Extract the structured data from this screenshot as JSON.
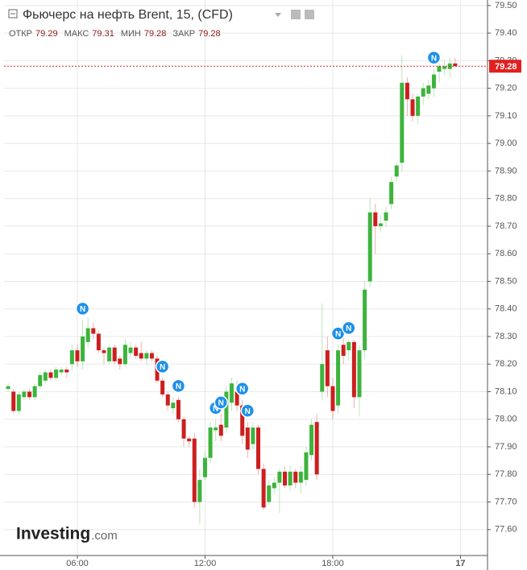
{
  "chart_data": {
    "type": "candlestick",
    "title": "Фьючерс на нефть Brent, 15, (CFD)",
    "ohlc": [
      {
        "label": "ОТКР",
        "value": 79.29
      },
      {
        "label": "МАКС",
        "value": 79.31
      },
      {
        "label": "МИН",
        "value": 79.28
      },
      {
        "label": "ЗАКР",
        "value": 79.28
      }
    ],
    "logo": {
      "name": "Investing",
      "suffix": ".com"
    },
    "up_color": "#3cb43c",
    "down_color": "#cc1f1f",
    "x": [
      2.75,
      3,
      3.25,
      3.5,
      3.75,
      4,
      4.25,
      4.5,
      4.75,
      5,
      5.25,
      5.5,
      5.75,
      6,
      6.25,
      6.5,
      6.75,
      7,
      7.25,
      7.5,
      7.75,
      8,
      8.25,
      8.5,
      8.75,
      9,
      9.25,
      9.5,
      9.75,
      10,
      10.25,
      10.5,
      10.75,
      11,
      11.25,
      11.5,
      11.75,
      12,
      12.25,
      12.5,
      12.75,
      13,
      13.25,
      13.5,
      13.75,
      14,
      14.25,
      14.5,
      14.75,
      15,
      15.25,
      15.5,
      15.75,
      16,
      16.25,
      16.5,
      16.75,
      17,
      17.25,
      17.5,
      17.75,
      18,
      18.25,
      18.5,
      18.75,
      19,
      19.25,
      19.5,
      19.75,
      20,
      20.25,
      20.5,
      20.75,
      21,
      21.25,
      21.5,
      21.75,
      22,
      22.25,
      22.5,
      22.75,
      23,
      23.25,
      23.5,
      23.75
    ],
    "open": [
      78.11,
      78.1,
      78.03,
      78.08,
      78.1,
      78.08,
      78.12,
      78.14,
      78.17,
      78.15,
      78.17,
      78.18,
      78.2,
      78.25,
      78.21,
      78.28,
      78.33,
      78.31,
      78.25,
      78.21,
      78.26,
      78.22,
      78.2,
      78.24,
      78.26,
      78.24,
      78.22,
      78.24,
      78.22,
      78.14,
      78.09,
      78.04,
      78.07,
      78.0,
      77.93,
      77.93,
      77.7,
      77.79,
      77.86,
      77.96,
      77.98,
      77.97,
      78.06,
      78.1,
      78.05,
      77.97,
      77.91,
      77.97,
      77.82,
      77.7,
      77.75,
      77.77,
      77.81,
      77.76,
      77.81,
      77.77,
      77.78,
      77.87,
      77.99,
      78.1,
      78.25,
      78.12,
      78.05,
      78.27,
      78.25,
      78.28,
      78.08,
      78.25,
      78.5,
      78.75,
      78.7,
      78.72,
      78.78,
      78.88,
      78.93,
      79.22,
      79.16,
      79.1,
      79.17,
      79.18,
      79.2,
      79.26,
      79.27,
      79.27,
      79.29
    ],
    "high": [
      78.13,
      78.11,
      78.1,
      78.11,
      78.11,
      78.13,
      78.17,
      78.18,
      78.18,
      78.19,
      78.19,
      78.19,
      78.27,
      78.27,
      78.36,
      78.37,
      78.35,
      78.32,
      78.26,
      78.27,
      78.27,
      78.23,
      78.29,
      78.28,
      78.27,
      78.28,
      78.25,
      78.25,
      78.23,
      78.15,
      78.1,
      78.08,
      78.08,
      78.01,
      77.94,
      77.95,
      77.82,
      77.88,
      77.99,
      78.0,
      78.02,
      78.12,
      78.15,
      78.14,
      78.07,
      77.99,
      77.99,
      77.98,
      77.84,
      77.78,
      77.79,
      77.82,
      77.83,
      77.83,
      77.82,
      77.83,
      77.9,
      78.0,
      78.02,
      78.42,
      78.3,
      78.15,
      78.27,
      78.3,
      78.29,
      78.29,
      78.27,
      78.5,
      78.8,
      78.78,
      78.74,
      78.77,
      78.88,
      78.93,
      79.32,
      79.24,
      79.18,
      79.18,
      79.22,
      79.23,
      79.27,
      79.29,
      79.3,
      79.31,
      79.31
    ],
    "low": [
      78.1,
      78.02,
      78.02,
      78.07,
      78.07,
      78.07,
      78.11,
      78.13,
      78.14,
      78.14,
      78.16,
      78.15,
      78.18,
      78.19,
      78.18,
      78.26,
      78.29,
      78.24,
      78.2,
      78.2,
      78.2,
      78.18,
      78.19,
      78.22,
      78.22,
      78.21,
      78.2,
      78.21,
      78.13,
      78.08,
      78.03,
      78.02,
      77.99,
      77.9,
      77.9,
      77.68,
      77.62,
      77.78,
      77.84,
      77.92,
      77.92,
      77.95,
      78.03,
      78.03,
      77.91,
      77.86,
      77.89,
      77.8,
      77.67,
      77.69,
      77.73,
      77.66,
      77.75,
      77.74,
      77.75,
      77.73,
      77.76,
      77.85,
      77.78,
      78.07,
      78.08,
      78.0,
      78.02,
      78.2,
      78.21,
      78.04,
      78.01,
      78.22,
      78.48,
      78.6,
      78.68,
      78.7,
      78.76,
      78.86,
      78.9,
      79.1,
      79.08,
      79.07,
      79.14,
      79.16,
      79.17,
      79.22,
      79.25,
      79.24,
      79.28
    ],
    "close": [
      78.12,
      78.03,
      78.09,
      78.1,
      78.08,
      78.12,
      78.16,
      78.17,
      78.15,
      78.18,
      78.18,
      78.17,
      78.25,
      78.21,
      78.3,
      78.33,
      78.31,
      78.25,
      78.24,
      78.26,
      78.21,
      78.2,
      78.27,
      78.26,
      78.23,
      78.22,
      78.24,
      78.22,
      78.14,
      78.09,
      78.05,
      78.06,
      78.0,
      77.93,
      77.92,
      77.7,
      77.78,
      77.86,
      77.97,
      77.97,
      77.94,
      78.1,
      78.13,
      78.05,
      77.94,
      77.89,
      77.97,
      77.82,
      77.68,
      77.76,
      77.77,
      77.81,
      77.76,
      77.81,
      77.77,
      77.81,
      77.88,
      77.98,
      77.8,
      78.2,
      78.12,
      78.03,
      78.25,
      78.23,
      78.28,
      78.08,
      78.25,
      78.47,
      78.75,
      78.7,
      78.71,
      78.75,
      78.86,
      78.92,
      79.22,
      79.16,
      79.1,
      79.17,
      79.2,
      79.21,
      79.25,
      79.28,
      79.28,
      79.29,
      79.28
    ],
    "events": [
      {
        "x": 6.25,
        "label": "N"
      },
      {
        "x": 10.0,
        "label": "N"
      },
      {
        "x": 10.75,
        "label": "N"
      },
      {
        "x": 12.5,
        "label": "N"
      },
      {
        "x": 12.75,
        "label": "N"
      },
      {
        "x": 13.75,
        "label": "N"
      },
      {
        "x": 14.0,
        "label": "N"
      },
      {
        "x": 18.25,
        "label": "N"
      },
      {
        "x": 18.75,
        "label": "N"
      },
      {
        "x": 22.75,
        "label": "N"
      }
    ],
    "xlim": [
      2.556,
      25.27
    ],
    "xticks": [
      {
        "value": 6,
        "label": "06:00"
      },
      {
        "value": 12,
        "label": "12:00"
      },
      {
        "value": 18,
        "label": "18:00"
      },
      {
        "value": 24,
        "label": "17"
      }
    ],
    "ylim": [
      77.506,
      79.52
    ],
    "yticks": [
      {
        "value": 77.6,
        "label": "77.60"
      },
      {
        "value": 77.7,
        "label": "77.70"
      },
      {
        "value": 77.8,
        "label": "77.80"
      },
      {
        "value": 77.9,
        "label": "77.90"
      },
      {
        "value": 78.0,
        "label": "78.00"
      },
      {
        "value": 78.1,
        "label": "78.10"
      },
      {
        "value": 78.2,
        "label": "78.20"
      },
      {
        "value": 78.3,
        "label": "78.30"
      },
      {
        "value": 78.4,
        "label": "78.40"
      },
      {
        "value": 78.5,
        "label": "78.50"
      },
      {
        "value": 78.6,
        "label": "78.60"
      },
      {
        "value": 78.7,
        "label": "78.70"
      },
      {
        "value": 78.8,
        "label": "78.80"
      },
      {
        "value": 78.9,
        "label": "78.90"
      },
      {
        "value": 79.0,
        "label": "79.00"
      },
      {
        "value": 79.1,
        "label": "79.10"
      },
      {
        "value": 79.2,
        "label": "79.20"
      },
      {
        "value": 79.3,
        "label": "79.30"
      },
      {
        "value": 79.4,
        "label": "79.40"
      },
      {
        "value": 79.5,
        "label": "79.50"
      }
    ],
    "grid": true
  }
}
